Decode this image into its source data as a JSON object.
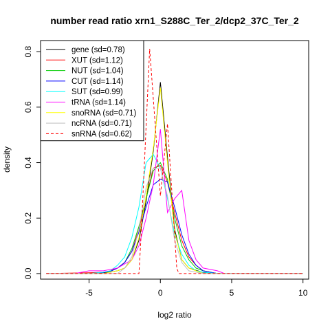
{
  "chart_data": {
    "type": "line",
    "title": "number read ratio xrn1_S288C_Ter_2/dcp2_37C_Ter_2",
    "xlabel": "log2 ratio",
    "ylabel": "density",
    "xlim": [
      -8.4,
      10.4
    ],
    "ylim": [
      -0.02,
      0.84
    ],
    "xticks": [
      -5,
      0,
      5,
      10
    ],
    "yticks": [
      0.0,
      0.2,
      0.4,
      0.6,
      0.8
    ],
    "x_tick_labels": [
      "-5",
      "0",
      "5",
      "10"
    ],
    "y_tick_labels": [
      "0.0",
      "0.2",
      "0.4",
      "0.6",
      "0.8"
    ],
    "legend_position": "top-left",
    "grid": false,
    "series": [
      {
        "name": "gene (sd=0.78)",
        "color": "#000000",
        "dash": "solid",
        "x": [
          -8,
          -5,
          -4,
          -3.5,
          -3,
          -2.5,
          -2,
          -1.5,
          -1,
          -0.5,
          0,
          0.5,
          1,
          1.5,
          2,
          3,
          4,
          10
        ],
        "y": [
          0,
          0,
          0.003,
          0.005,
          0.01,
          0.02,
          0.05,
          0.12,
          0.26,
          0.44,
          0.69,
          0.42,
          0.16,
          0.05,
          0.02,
          0.004,
          0,
          0
        ]
      },
      {
        "name": "XUT (sd=1.12)",
        "color": "#ff0000",
        "dash": "solid",
        "x": [
          -8,
          -5,
          -4,
          -3.5,
          -3,
          -2.5,
          -2,
          -1.5,
          -1,
          -0.5,
          0,
          0.5,
          1,
          1.5,
          2,
          2.5,
          3,
          4,
          10
        ],
        "y": [
          0,
          0.003,
          0.005,
          0.01,
          0.02,
          0.04,
          0.08,
          0.16,
          0.27,
          0.38,
          0.39,
          0.33,
          0.22,
          0.12,
          0.06,
          0.03,
          0.01,
          0,
          0
        ]
      },
      {
        "name": "NUT (sd=1.04)",
        "color": "#00cc00",
        "dash": "solid",
        "x": [
          -8,
          -5,
          -4,
          -3.5,
          -3,
          -2.5,
          -2,
          -1.5,
          -1,
          -0.5,
          0,
          0.5,
          1,
          1.5,
          2,
          2.5,
          3,
          4,
          10
        ],
        "y": [
          0,
          0,
          0.004,
          0.008,
          0.02,
          0.04,
          0.09,
          0.17,
          0.27,
          0.37,
          0.4,
          0.34,
          0.2,
          0.1,
          0.05,
          0.02,
          0.01,
          0,
          0
        ]
      },
      {
        "name": "CUT (sd=1.14)",
        "color": "#0000ff",
        "dash": "solid",
        "x": [
          -8,
          -5,
          -4,
          -3.5,
          -3,
          -2.5,
          -2,
          -1.5,
          -1,
          -0.5,
          0,
          0.5,
          1,
          1.5,
          2,
          2.5,
          3,
          4,
          10
        ],
        "y": [
          0,
          0,
          0.004,
          0.008,
          0.02,
          0.04,
          0.08,
          0.15,
          0.24,
          0.32,
          0.34,
          0.33,
          0.24,
          0.14,
          0.07,
          0.03,
          0.01,
          0,
          0
        ]
      },
      {
        "name": "SUT (sd=0.99)",
        "color": "#00ffff",
        "dash": "solid",
        "x": [
          -8,
          -5,
          -4,
          -3.5,
          -3,
          -2.5,
          -2,
          -1.5,
          -1,
          -0.5,
          0,
          0.5,
          1,
          1.5,
          2,
          2.5,
          3,
          4,
          10
        ],
        "y": [
          0,
          0,
          0.005,
          0.01,
          0.03,
          0.06,
          0.13,
          0.24,
          0.4,
          0.43,
          0.38,
          0.27,
          0.14,
          0.07,
          0.03,
          0.01,
          0.005,
          0,
          0
        ]
      },
      {
        "name": "tRNA (sd=1.14)",
        "color": "#ff00ff",
        "dash": "solid",
        "x": [
          -8,
          -6,
          -5,
          -4,
          -3,
          -2,
          -1.5,
          -1,
          -0.5,
          0,
          0.5,
          1,
          1.5,
          2,
          2.5,
          3,
          4,
          4.5,
          10
        ],
        "y": [
          0,
          0,
          0.01,
          0.01,
          0.02,
          0.05,
          0.1,
          0.2,
          0.32,
          0.52,
          0.22,
          0.27,
          0.3,
          0.12,
          0.05,
          0.02,
          0.01,
          0,
          0
        ]
      },
      {
        "name": "snoRNA (sd=0.71)",
        "color": "#ffff00",
        "dash": "solid",
        "x": [
          -8,
          -4,
          -3,
          -2.5,
          -2,
          -1.5,
          -1,
          -0.5,
          0,
          0.5,
          1,
          1.5,
          2,
          3,
          10
        ],
        "y": [
          0,
          0,
          0.01,
          0.02,
          0.05,
          0.13,
          0.28,
          0.45,
          0.67,
          0.4,
          0.15,
          0.05,
          0.02,
          0,
          0
        ]
      },
      {
        "name": "ncRNA (sd=0.71)",
        "color": "#bebebe",
        "dash": "solid",
        "x": [
          -8,
          -3,
          -2.5,
          -2,
          -1.5,
          -1,
          -0.5,
          0,
          0.5,
          1,
          1.5,
          2,
          2.5,
          3,
          10
        ],
        "y": [
          0,
          0,
          0.02,
          0.06,
          0.16,
          0.31,
          0.38,
          0.38,
          0.28,
          0.12,
          0.04,
          0.01,
          0.005,
          0,
          0
        ]
      },
      {
        "name": "snRNA (sd=0.62)",
        "color": "#ff0000",
        "dash": "dashed",
        "x": [
          -8,
          -1.5,
          -1.35,
          -0.75,
          0,
          0.5,
          1.15,
          1.3,
          10
        ],
        "y": [
          0,
          0,
          0.14,
          0.81,
          0.28,
          0.54,
          0.02,
          0,
          0
        ]
      }
    ]
  }
}
